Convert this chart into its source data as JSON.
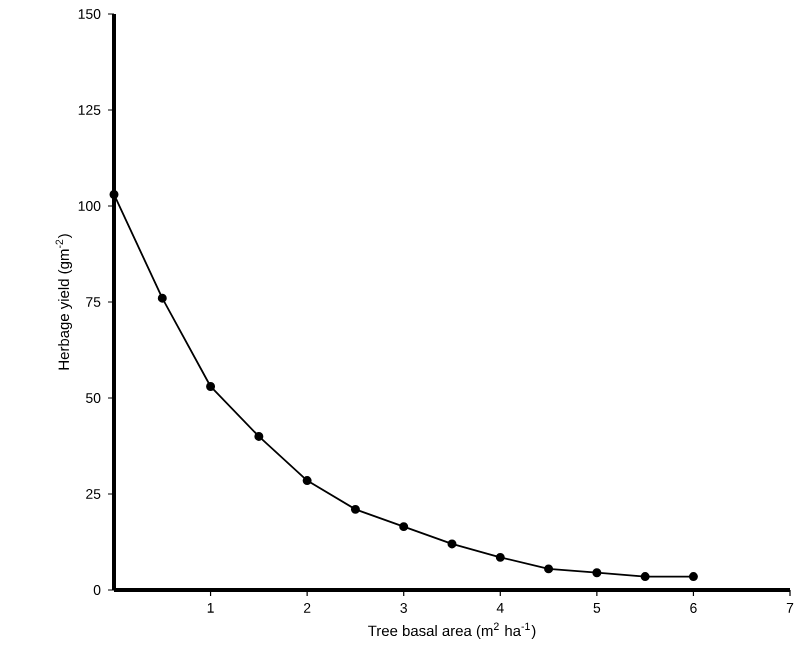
{
  "chart_data": {
    "type": "line",
    "xlabel": "Tree basal area (m$^{2}$ ha$^{-1}$)",
    "ylabel": "Herbage yield (gm$^{-2}$)",
    "x": [
      0,
      0.5,
      1,
      1.5,
      2,
      2.5,
      3,
      3.5,
      4,
      4.5,
      5,
      5.5,
      6
    ],
    "series": [
      {
        "color": "#000000",
        "values": [
          103,
          76,
          53,
          40,
          28.5,
          21,
          16.5,
          12,
          8.5,
          5.5,
          4.5,
          3.5,
          3.5
        ]
      }
    ],
    "xlim": [
      0,
      7
    ],
    "xticks": [
      1,
      2,
      3,
      4,
      5,
      6,
      7
    ],
    "ylim": [
      0,
      150
    ],
    "yticks": [
      0,
      25,
      50,
      75,
      100,
      125,
      150
    ],
    "marker": "circle",
    "line_style": "solid"
  }
}
